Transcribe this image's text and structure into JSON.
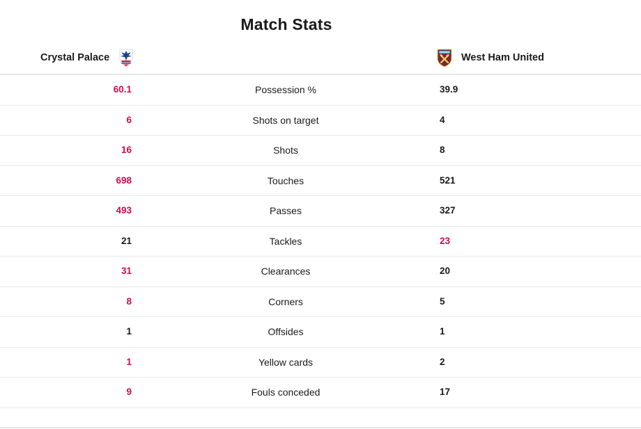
{
  "title": "Match Stats",
  "home": {
    "name": "Crystal Palace",
    "crest": "crystal-palace-eagle-crest"
  },
  "away": {
    "name": "West Ham United",
    "crest": "west-ham-hammers-crest"
  },
  "colors": {
    "leader": "#d10a4f",
    "default": "#1a1a1a"
  },
  "stats": [
    {
      "label": "Possession %",
      "home": "60.1",
      "away": "39.9",
      "leader": "home"
    },
    {
      "label": "Shots on target",
      "home": "6",
      "away": "4",
      "leader": "home"
    },
    {
      "label": "Shots",
      "home": "16",
      "away": "8",
      "leader": "home"
    },
    {
      "label": "Touches",
      "home": "698",
      "away": "521",
      "leader": "home"
    },
    {
      "label": "Passes",
      "home": "493",
      "away": "327",
      "leader": "home"
    },
    {
      "label": "Tackles",
      "home": "21",
      "away": "23",
      "leader": "away"
    },
    {
      "label": "Clearances",
      "home": "31",
      "away": "20",
      "leader": "home"
    },
    {
      "label": "Corners",
      "home": "8",
      "away": "5",
      "leader": "home"
    },
    {
      "label": "Offsides",
      "home": "1",
      "away": "1",
      "leader": "none"
    },
    {
      "label": "Yellow cards",
      "home": "1",
      "away": "2",
      "leader": "home"
    },
    {
      "label": "Fouls conceded",
      "home": "9",
      "away": "17",
      "leader": "home"
    }
  ]
}
